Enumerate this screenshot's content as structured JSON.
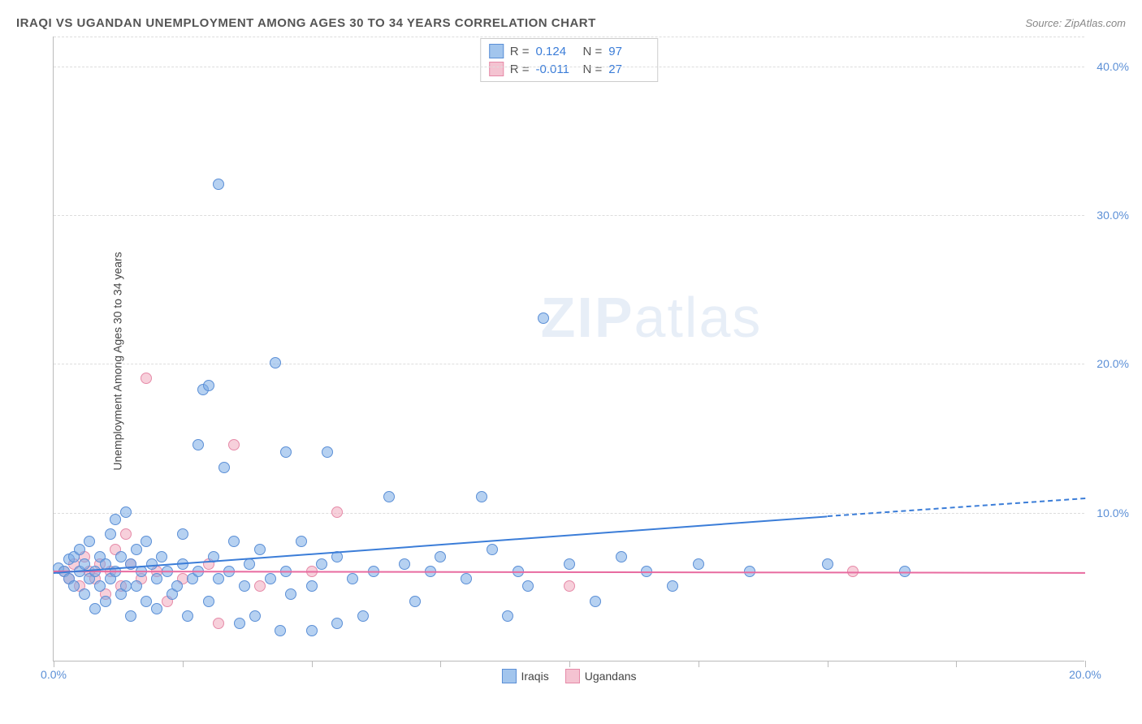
{
  "header": {
    "title": "IRAQI VS UGANDAN UNEMPLOYMENT AMONG AGES 30 TO 34 YEARS CORRELATION CHART",
    "source": "Source: ZipAtlas.com"
  },
  "chart": {
    "type": "scatter",
    "ylabel": "Unemployment Among Ages 30 to 34 years",
    "watermark_bold": "ZIP",
    "watermark_rest": "atlas",
    "xlim": [
      0,
      20
    ],
    "ylim": [
      0,
      42
    ],
    "x_ticks": [
      0,
      2.5,
      5,
      7.5,
      10,
      12.5,
      15,
      17.5,
      20
    ],
    "x_tick_labels": {
      "0": "0.0%",
      "20": "20.0%"
    },
    "y_gridlines": [
      10,
      20,
      30,
      40,
      42
    ],
    "y_tick_labels": {
      "10": "10.0%",
      "20": "20.0%",
      "30": "30.0%",
      "40": "40.0%"
    },
    "colors": {
      "blue_fill": "rgba(122,172,230,0.55)",
      "blue_stroke": "#5b8fd6",
      "pink_fill": "rgba(240,170,190,0.55)",
      "pink_stroke": "#e68aa8",
      "blue_line": "#3b7dd8",
      "pink_line": "#e86ba0",
      "grid": "#dddddd",
      "axis": "#bbbbbb",
      "label": "#5b8fd6"
    },
    "stats": [
      {
        "swatch": "blue",
        "r_label": "R =",
        "r_val": "0.124",
        "n_label": "N =",
        "n_val": "97"
      },
      {
        "swatch": "pink",
        "r_label": "R =",
        "r_val": "-0.011",
        "n_label": "N =",
        "n_val": "27"
      }
    ],
    "bottom_legend": [
      {
        "swatch": "blue",
        "label": "Iraqis"
      },
      {
        "swatch": "pink",
        "label": "Ugandans"
      }
    ],
    "trend_lines": {
      "blue_solid": {
        "x1": 0,
        "y1": 6.0,
        "x2": 15,
        "y2": 9.8
      },
      "blue_dashed": {
        "x1": 15,
        "y1": 9.8,
        "x2": 20,
        "y2": 11.0
      },
      "pink": {
        "x1": 0,
        "y1": 6.1,
        "x2": 20,
        "y2": 6.0
      }
    },
    "series": {
      "iraqis": [
        [
          0.1,
          6.2
        ],
        [
          0.2,
          6.0
        ],
        [
          0.3,
          5.5
        ],
        [
          0.3,
          6.8
        ],
        [
          0.4,
          7.0
        ],
        [
          0.4,
          5.0
        ],
        [
          0.5,
          6.0
        ],
        [
          0.5,
          7.5
        ],
        [
          0.6,
          4.5
        ],
        [
          0.6,
          6.5
        ],
        [
          0.7,
          5.5
        ],
        [
          0.7,
          8.0
        ],
        [
          0.8,
          6.0
        ],
        [
          0.8,
          3.5
        ],
        [
          0.9,
          7.0
        ],
        [
          0.9,
          5.0
        ],
        [
          1.0,
          6.5
        ],
        [
          1.0,
          4.0
        ],
        [
          1.1,
          8.5
        ],
        [
          1.1,
          5.5
        ],
        [
          1.2,
          6.0
        ],
        [
          1.2,
          9.5
        ],
        [
          1.3,
          4.5
        ],
        [
          1.3,
          7.0
        ],
        [
          1.4,
          5.0
        ],
        [
          1.4,
          10.0
        ],
        [
          1.5,
          6.5
        ],
        [
          1.5,
          3.0
        ],
        [
          1.6,
          7.5
        ],
        [
          1.6,
          5.0
        ],
        [
          1.7,
          6.0
        ],
        [
          1.8,
          8.0
        ],
        [
          1.8,
          4.0
        ],
        [
          1.9,
          6.5
        ],
        [
          2.0,
          5.5
        ],
        [
          2.0,
          3.5
        ],
        [
          2.1,
          7.0
        ],
        [
          2.2,
          6.0
        ],
        [
          2.3,
          4.5
        ],
        [
          2.4,
          5.0
        ],
        [
          2.5,
          6.5
        ],
        [
          2.5,
          8.5
        ],
        [
          2.6,
          3.0
        ],
        [
          2.7,
          5.5
        ],
        [
          2.8,
          6.0
        ],
        [
          2.8,
          14.5
        ],
        [
          2.9,
          18.2
        ],
        [
          3.0,
          18.5
        ],
        [
          3.0,
          4.0
        ],
        [
          3.1,
          7.0
        ],
        [
          3.2,
          5.5
        ],
        [
          3.2,
          32.0
        ],
        [
          3.3,
          13.0
        ],
        [
          3.4,
          6.0
        ],
        [
          3.5,
          8.0
        ],
        [
          3.6,
          2.5
        ],
        [
          3.7,
          5.0
        ],
        [
          3.8,
          6.5
        ],
        [
          3.9,
          3.0
        ],
        [
          4.0,
          7.5
        ],
        [
          4.2,
          5.5
        ],
        [
          4.3,
          20.0
        ],
        [
          4.4,
          2.0
        ],
        [
          4.5,
          6.0
        ],
        [
          4.5,
          14.0
        ],
        [
          4.6,
          4.5
        ],
        [
          4.8,
          8.0
        ],
        [
          5.0,
          5.0
        ],
        [
          5.0,
          2.0
        ],
        [
          5.2,
          6.5
        ],
        [
          5.3,
          14.0
        ],
        [
          5.5,
          7.0
        ],
        [
          5.5,
          2.5
        ],
        [
          5.8,
          5.5
        ],
        [
          6.0,
          3.0
        ],
        [
          6.2,
          6.0
        ],
        [
          6.5,
          11.0
        ],
        [
          6.8,
          6.5
        ],
        [
          7.0,
          4.0
        ],
        [
          7.3,
          6.0
        ],
        [
          7.5,
          7.0
        ],
        [
          8.0,
          5.5
        ],
        [
          8.3,
          11.0
        ],
        [
          8.5,
          7.5
        ],
        [
          8.8,
          3.0
        ],
        [
          9.0,
          6.0
        ],
        [
          9.2,
          5.0
        ],
        [
          9.5,
          23.0
        ],
        [
          10.0,
          6.5
        ],
        [
          10.5,
          4.0
        ],
        [
          11.0,
          7.0
        ],
        [
          11.5,
          6.0
        ],
        [
          12.0,
          5.0
        ],
        [
          12.5,
          6.5
        ],
        [
          13.5,
          6.0
        ],
        [
          15.0,
          6.5
        ],
        [
          16.5,
          6.0
        ]
      ],
      "ugandans": [
        [
          0.2,
          6.0
        ],
        [
          0.3,
          5.5
        ],
        [
          0.4,
          6.5
        ],
        [
          0.5,
          5.0
        ],
        [
          0.6,
          7.0
        ],
        [
          0.7,
          6.0
        ],
        [
          0.8,
          5.5
        ],
        [
          0.9,
          6.5
        ],
        [
          1.0,
          4.5
        ],
        [
          1.1,
          6.0
        ],
        [
          1.2,
          7.5
        ],
        [
          1.3,
          5.0
        ],
        [
          1.4,
          8.5
        ],
        [
          1.5,
          6.5
        ],
        [
          1.7,
          5.5
        ],
        [
          1.8,
          19.0
        ],
        [
          2.0,
          6.0
        ],
        [
          2.2,
          4.0
        ],
        [
          2.5,
          5.5
        ],
        [
          3.0,
          6.5
        ],
        [
          3.2,
          2.5
        ],
        [
          3.5,
          14.5
        ],
        [
          4.0,
          5.0
        ],
        [
          5.0,
          6.0
        ],
        [
          5.5,
          10.0
        ],
        [
          10.0,
          5.0
        ],
        [
          15.5,
          6.0
        ]
      ]
    }
  }
}
